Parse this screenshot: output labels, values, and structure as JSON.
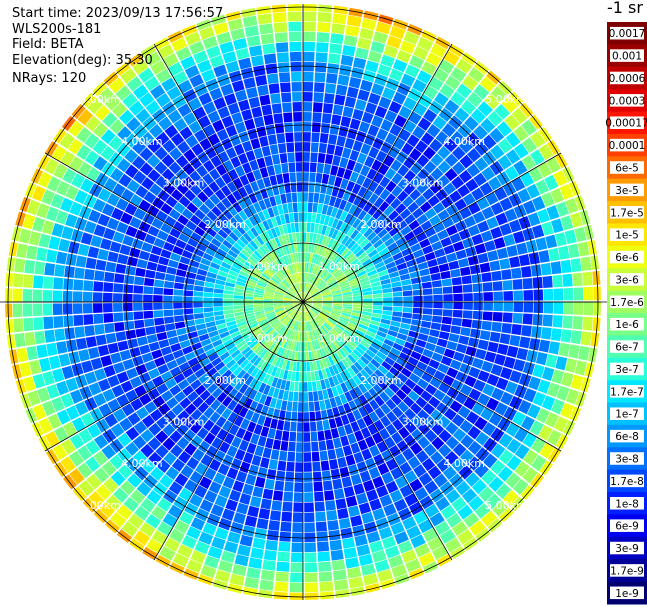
{
  "info": {
    "start_time": "Start time: 2023/09/13 17:56:57",
    "instrument": "WLS200s-181",
    "field": "Field: BETA",
    "elevation": "Elevation(deg): 35.30",
    "nrays": "NRays: 120"
  },
  "colorbar": {
    "unit_label": "-1 sr",
    "labels": [
      "0.0017",
      "0.001",
      "0.0006",
      "0.0003",
      "0.00017",
      "0.0001",
      "6e-5",
      "3e-5",
      "1.7e-5",
      "1e-5",
      "6e-6",
      "3e-6",
      "1.7e-6",
      "1e-6",
      "6e-7",
      "3e-7",
      "1.7e-7",
      "1e-7",
      "6e-8",
      "3e-8",
      "1.7e-8",
      "1e-8",
      "6e-9",
      "3e-9",
      "1.7e-9",
      "1e-9"
    ],
    "colors": [
      "#800000",
      "#9a0000",
      "#c00000",
      "#e00000",
      "#ff1500",
      "#ff4000",
      "#ff6a00",
      "#ff9a00",
      "#ffc000",
      "#ffe600",
      "#f0ff10",
      "#c8ff38",
      "#a0ff60",
      "#78ff88",
      "#50ffb0",
      "#28ffd8",
      "#00e8ff",
      "#00c0ff",
      "#0098ff",
      "#0070ff",
      "#0048ff",
      "#0020ff",
      "#0000f0",
      "#0000c0",
      "#000098",
      "#000070"
    ]
  },
  "chart_data": {
    "type": "heatmap",
    "projection": "polar (PPI scan)",
    "field": "BETA",
    "nrays": 120,
    "elevation_deg": 35.3,
    "range_rings_km": [
      1,
      2,
      3,
      4,
      5
    ],
    "range_ring_labels": [
      "1.00km",
      "2.00km",
      "3.00km",
      "4.00km",
      "5.00km"
    ],
    "max_range_km": 5.05,
    "azimuth_spokes_deg": [
      0,
      30,
      60,
      90,
      120,
      150,
      180,
      210,
      240,
      270,
      300,
      330
    ],
    "colorscale": "log10, 1e-9 to 0.0017 sr^-1 m^-1",
    "profile_range_km": [
      0.0,
      1.0,
      2.0,
      3.0,
      4.0,
      4.4,
      4.7,
      4.9,
      5.05
    ],
    "profile_typical_beta": [
      2e-06,
      7e-07,
      2e-08,
      1.7e-08,
      3e-08,
      2e-07,
      1e-06,
      3e-06,
      6e-06
    ],
    "sector_boost_azimuth_deg": [
      20,
      220,
      300
    ],
    "sector_boost_factor": 2.5
  }
}
